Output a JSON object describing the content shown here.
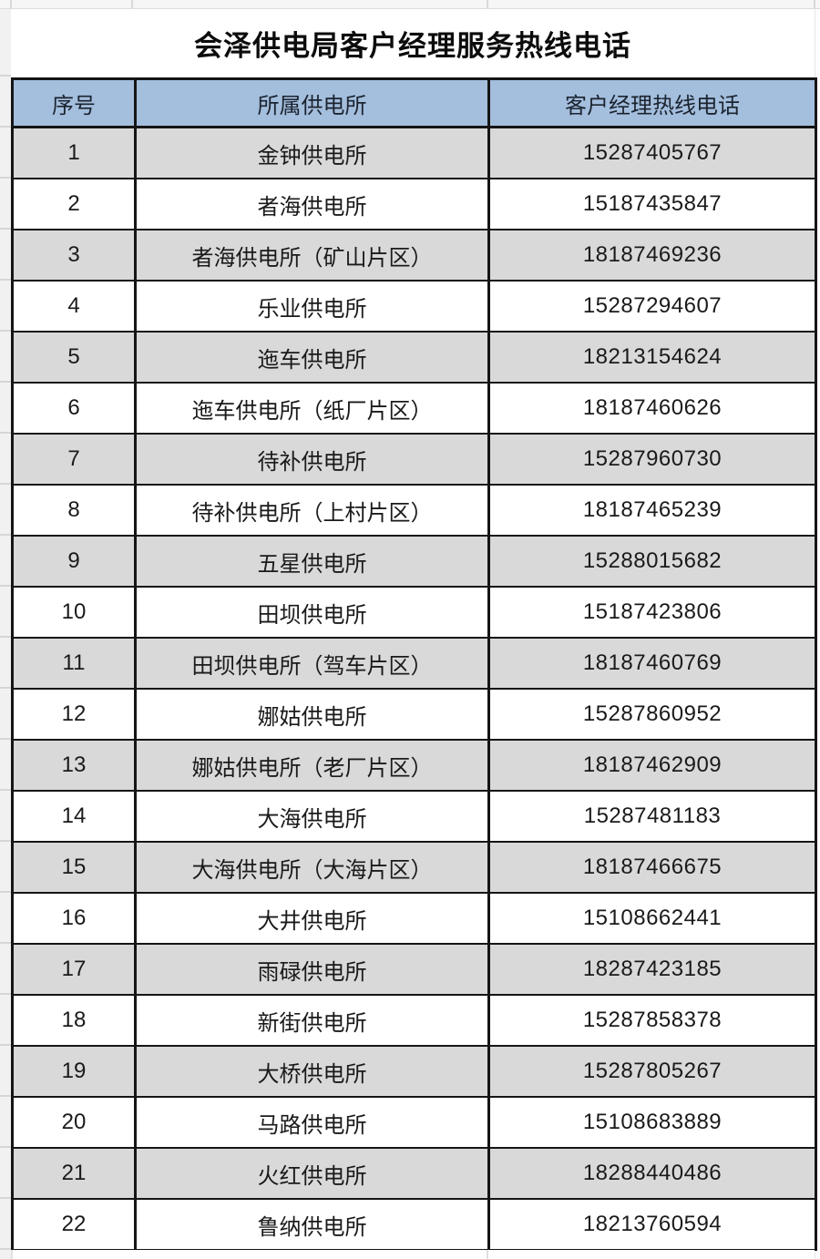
{
  "page": {
    "title": "会泽供电局客户经理服务热线电话"
  },
  "table": {
    "headers": [
      "序号",
      "所属供电所",
      "客户经理热线电话"
    ],
    "rows": [
      {
        "no": "1",
        "station": "金钟供电所",
        "phone": "15287405767"
      },
      {
        "no": "2",
        "station": "者海供电所",
        "phone": "15187435847"
      },
      {
        "no": "3",
        "station": "者海供电所（矿山片区）",
        "phone": "18187469236"
      },
      {
        "no": "4",
        "station": "乐业供电所",
        "phone": "15287294607"
      },
      {
        "no": "5",
        "station": "迤车供电所",
        "phone": "18213154624"
      },
      {
        "no": "6",
        "station": "迤车供电所（纸厂片区）",
        "phone": "18187460626"
      },
      {
        "no": "7",
        "station": "待补供电所",
        "phone": "15287960730"
      },
      {
        "no": "8",
        "station": "待补供电所（上村片区）",
        "phone": "18187465239"
      },
      {
        "no": "9",
        "station": "五星供电所",
        "phone": "15288015682"
      },
      {
        "no": "10",
        "station": "田坝供电所",
        "phone": "15187423806"
      },
      {
        "no": "11",
        "station": "田坝供电所（驾车片区）",
        "phone": "18187460769"
      },
      {
        "no": "12",
        "station": "娜姑供电所",
        "phone": "15287860952"
      },
      {
        "no": "13",
        "station": "娜姑供电所（老厂片区）",
        "phone": "18187462909"
      },
      {
        "no": "14",
        "station": "大海供电所",
        "phone": "15287481183"
      },
      {
        "no": "15",
        "station": "大海供电所（大海片区）",
        "phone": "18187466675"
      },
      {
        "no": "16",
        "station": "大井供电所",
        "phone": "15108662441"
      },
      {
        "no": "17",
        "station": "雨碌供电所",
        "phone": "18287423185"
      },
      {
        "no": "18",
        "station": "新街供电所",
        "phone": "15287858378"
      },
      {
        "no": "19",
        "station": "大桥供电所",
        "phone": "15287805267"
      },
      {
        "no": "20",
        "station": "马路供电所",
        "phone": "15108683889"
      },
      {
        "no": "21",
        "station": "火红供电所",
        "phone": "18288440486"
      },
      {
        "no": "22",
        "station": "鲁纳供电所",
        "phone": "18213760594"
      }
    ]
  },
  "colors": {
    "header_bg": "#a4bedd",
    "row_alt_bg": "#d9d9d9",
    "row_bg": "#ffffff",
    "border": "#151515",
    "grid_line": "#d9d9d9",
    "margin_bg": "#f1f1f1",
    "text": "#1a1a1a"
  }
}
